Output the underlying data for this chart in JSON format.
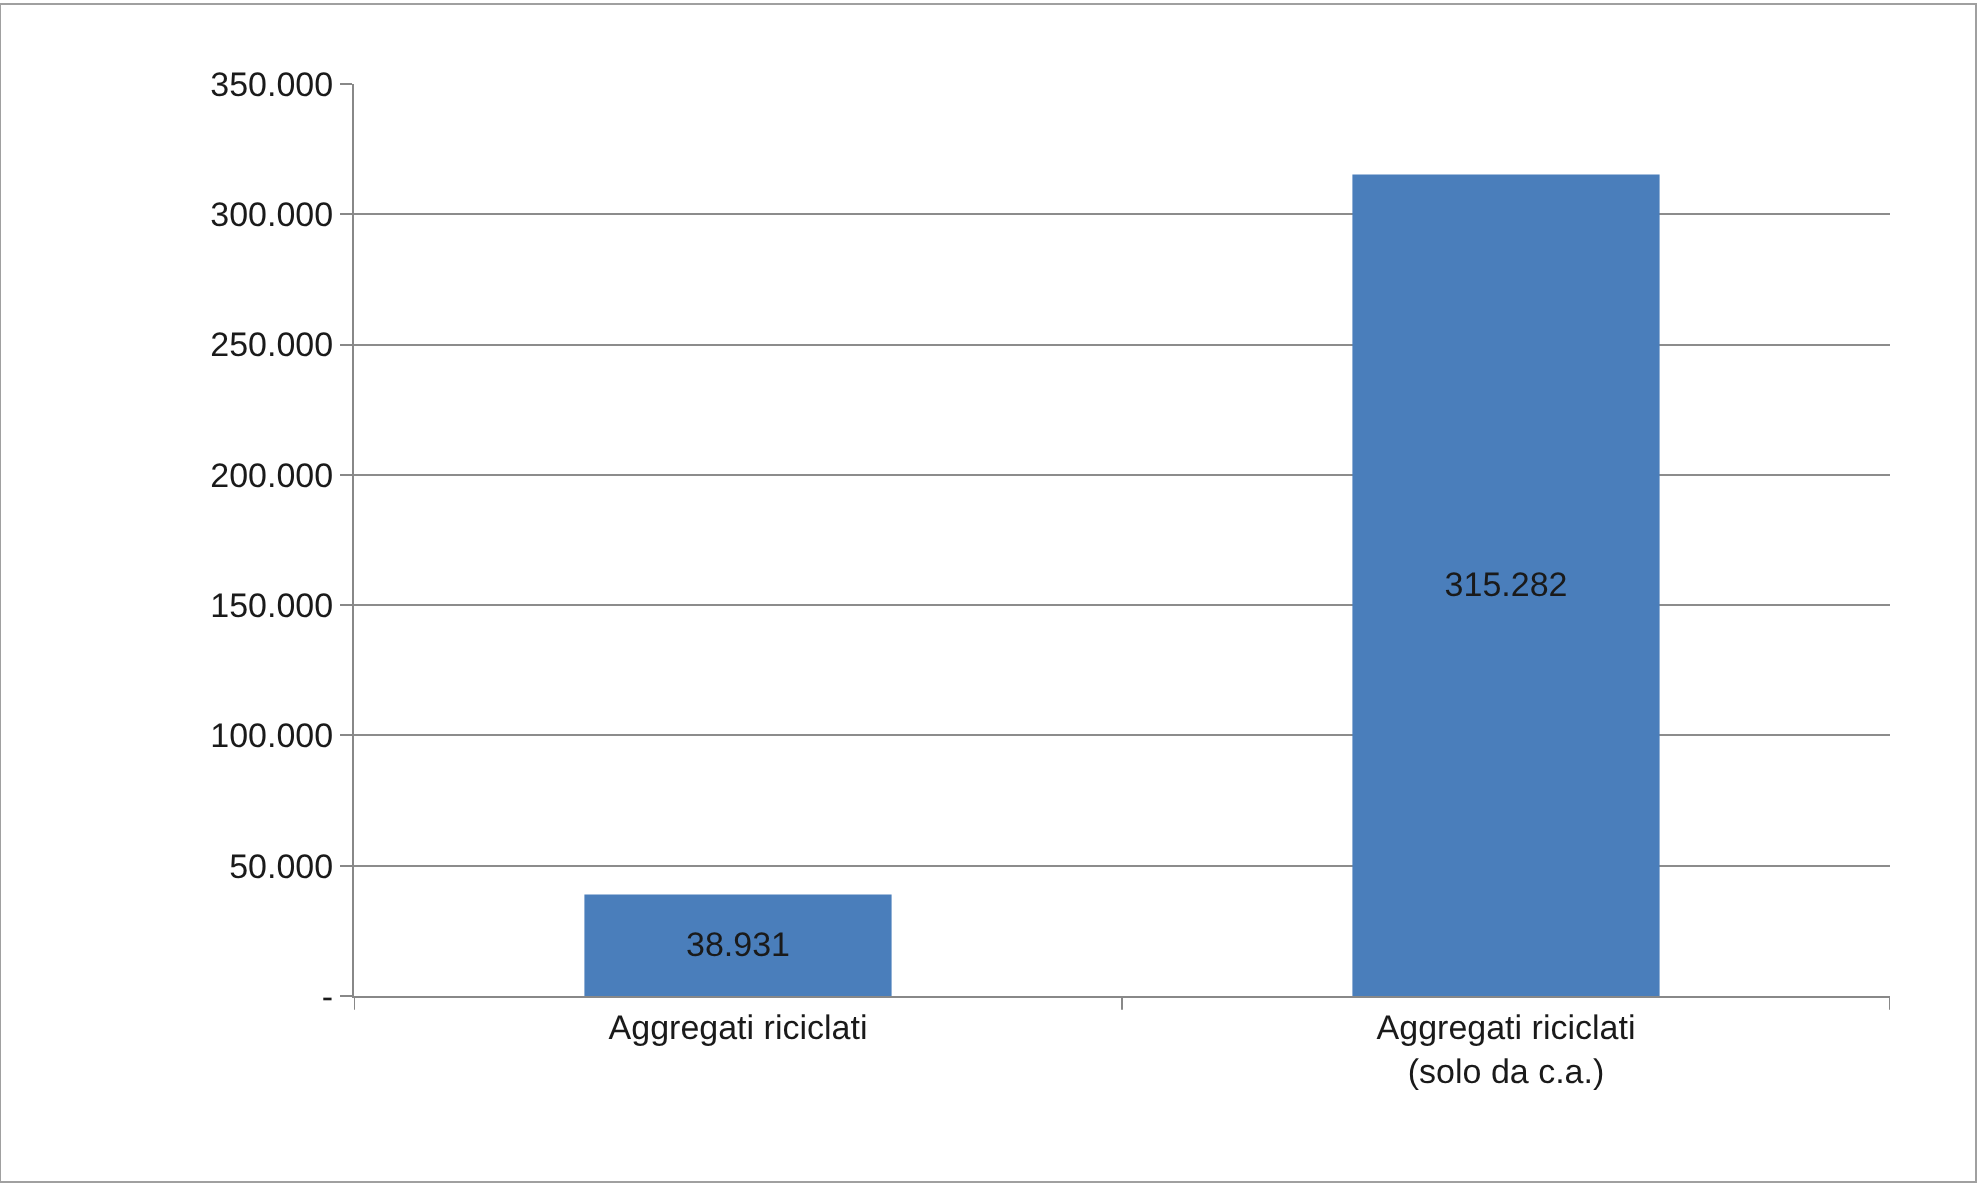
{
  "chart_data": {
    "type": "bar",
    "categories": [
      "Aggregati riciclati",
      "Aggregati riciclati\n(solo da c.a.)"
    ],
    "values": [
      38931,
      315282
    ],
    "value_labels": [
      "38.931",
      "315.282"
    ],
    "color": "#4a7ebb",
    "ylim": [
      0,
      350000
    ],
    "yticks": [
      {
        "value": 0,
        "label": "-"
      },
      {
        "value": 50000,
        "label": "50.000"
      },
      {
        "value": 100000,
        "label": "100.000"
      },
      {
        "value": 150000,
        "label": "150.000"
      },
      {
        "value": 200000,
        "label": "200.000"
      },
      {
        "value": 250000,
        "label": "250.000"
      },
      {
        "value": 300000,
        "label": "300.000"
      },
      {
        "value": 350000,
        "label": "350.000"
      }
    ],
    "grid": "y"
  }
}
